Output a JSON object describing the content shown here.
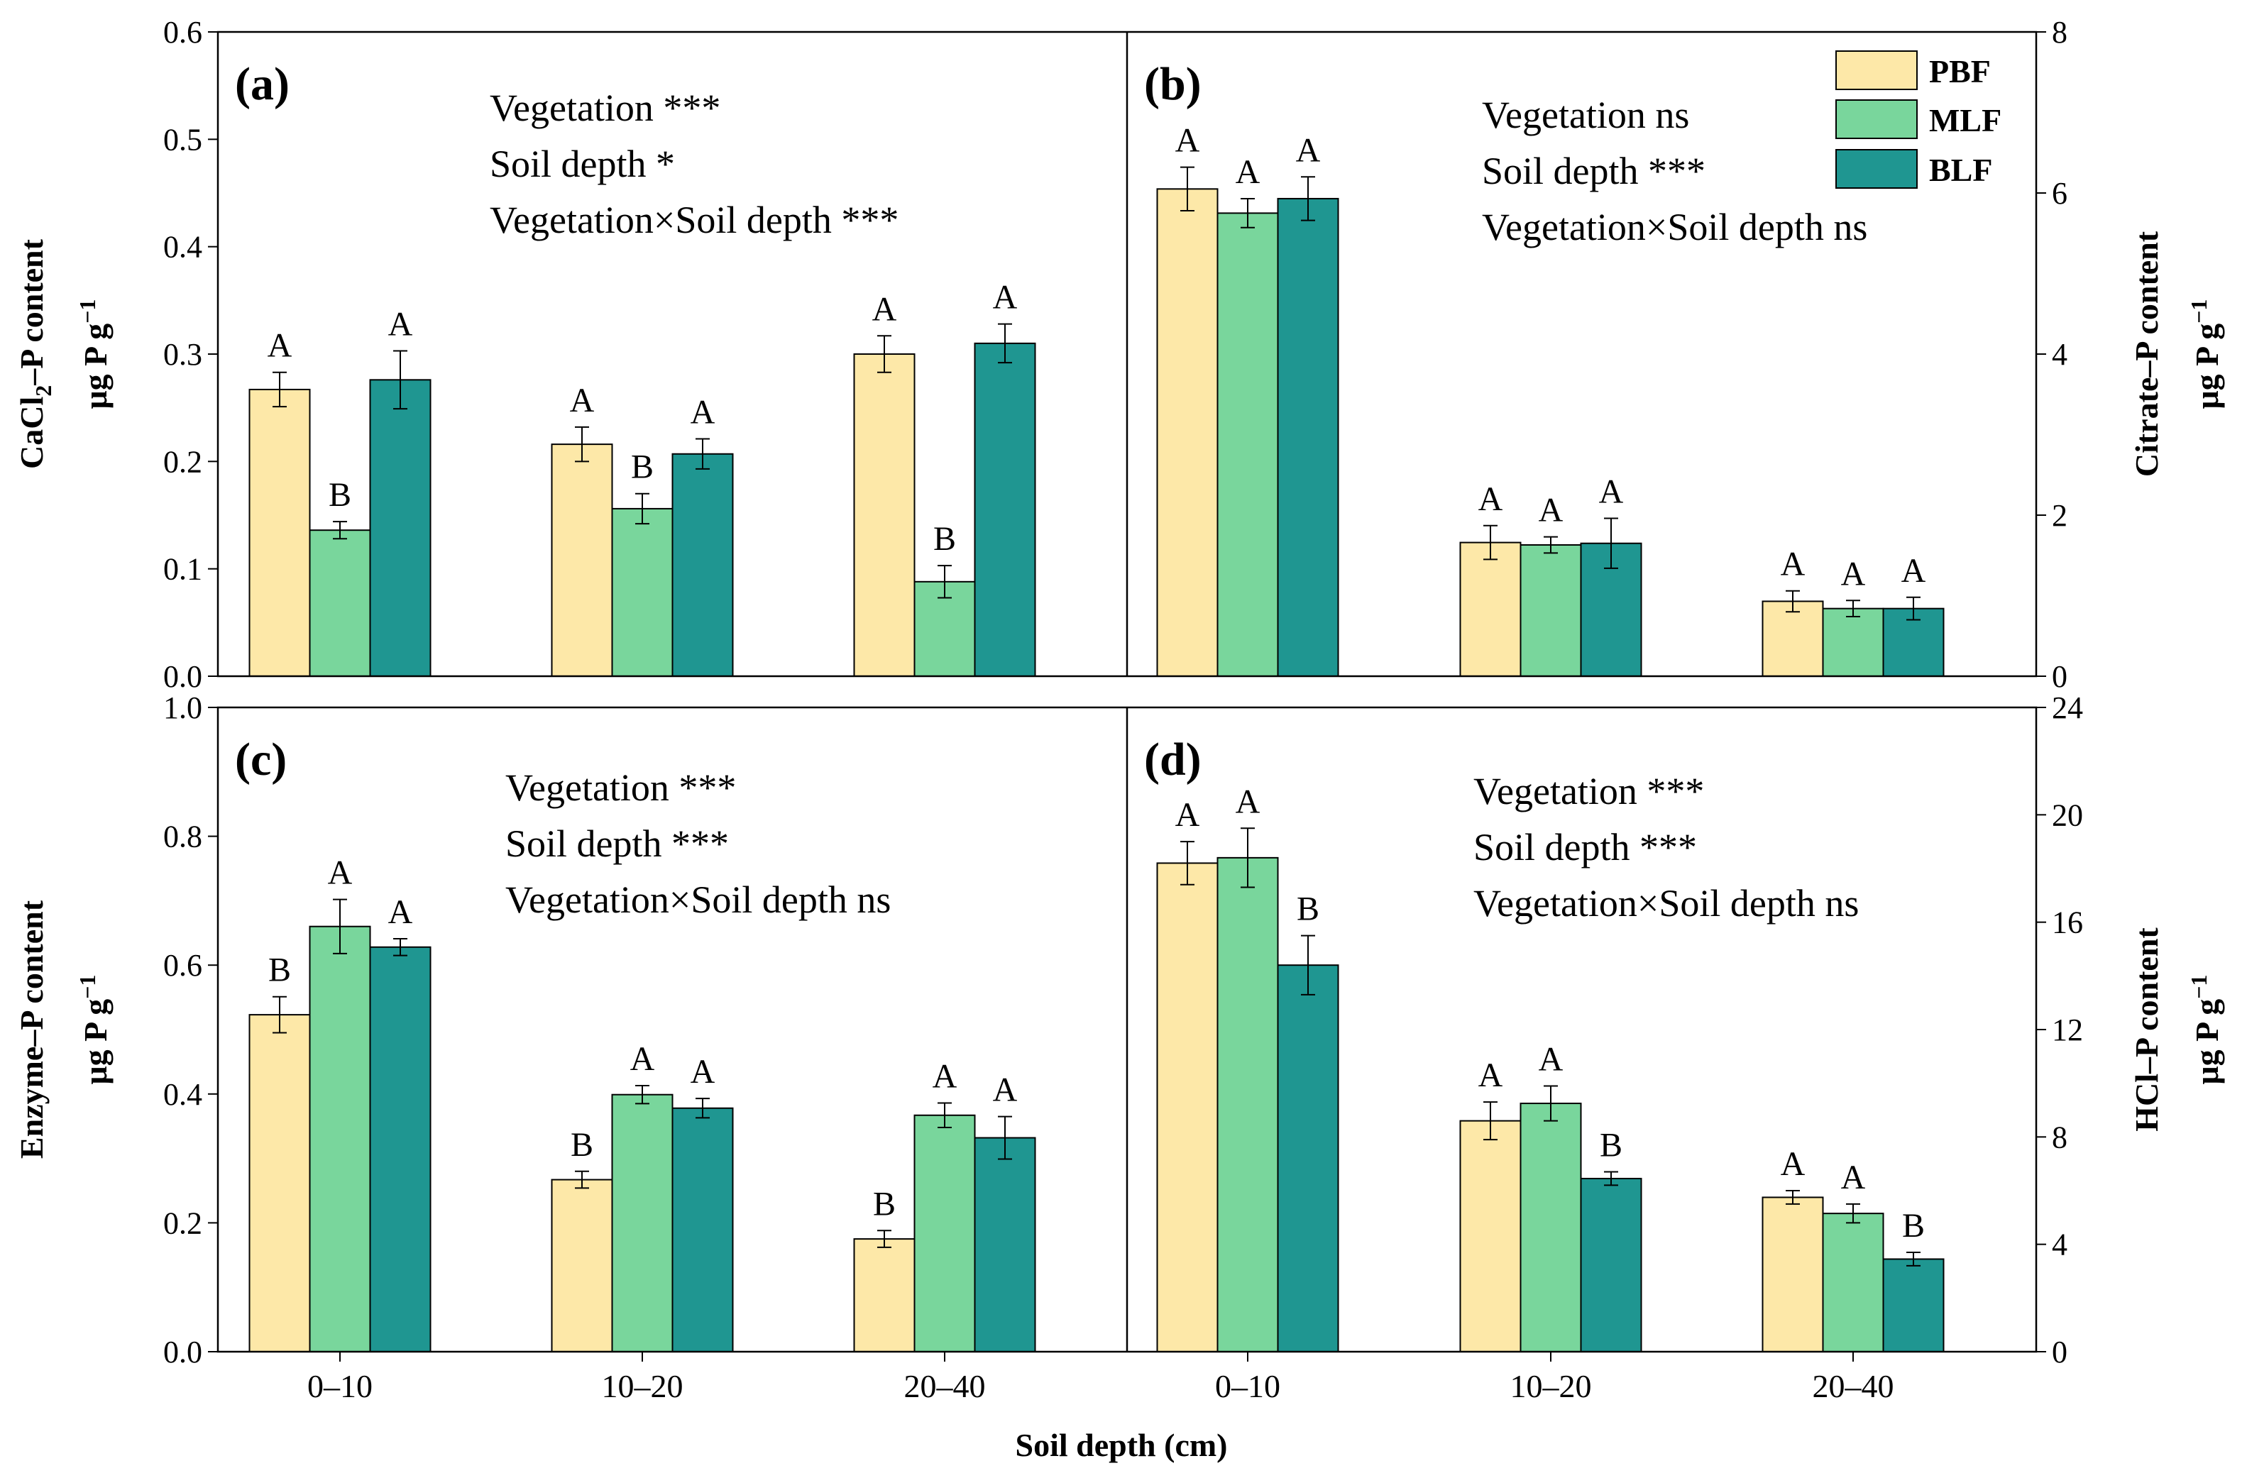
{
  "chart_data": {
    "type": "bar",
    "xlabel": "Soil depth (cm)",
    "categories": [
      "0–10",
      "10–20",
      "20–40"
    ],
    "legend": {
      "position": "top-right",
      "entries": [
        {
          "name": "PBF",
          "color": "#FDE8A8"
        },
        {
          "name": "MLF",
          "color": "#79D69C"
        },
        {
          "name": "BLF",
          "color": "#1F9691"
        }
      ]
    },
    "panels": [
      {
        "label": "(a)",
        "ylabel_line1": "CaCl",
        "ylabel_sub": "2",
        "ylabel_line1_rest": "–P content",
        "ylabel_line2": "μg P g",
        "ylabel_sup": "−1",
        "yaxis_side": "left",
        "ylim": [
          0,
          0.6
        ],
        "yticks": [
          "0.0",
          "0.1",
          "0.2",
          "0.3",
          "0.4",
          "0.5",
          "0.6"
        ],
        "annotation": [
          "Vegetation ***",
          "Soil depth *",
          "Vegetation×Soil depth ***"
        ],
        "series": [
          {
            "name": "PBF",
            "values": [
              0.267,
              0.216,
              0.3
            ],
            "errors": [
              0.016,
              0.016,
              0.017
            ],
            "letters": [
              "A",
              "A",
              "A"
            ]
          },
          {
            "name": "MLF",
            "values": [
              0.136,
              0.156,
              0.088
            ],
            "errors": [
              0.008,
              0.014,
              0.015
            ],
            "letters": [
              "B",
              "B",
              "B"
            ]
          },
          {
            "name": "BLF",
            "values": [
              0.276,
              0.207,
              0.31
            ],
            "errors": [
              0.027,
              0.014,
              0.018
            ],
            "letters": [
              "A",
              "A",
              "A"
            ]
          }
        ]
      },
      {
        "label": "(b)",
        "ylabel_line1": "Citrate–P content",
        "ylabel_line2": "μg P g",
        "ylabel_sup": "−1",
        "yaxis_side": "right",
        "ylim": [
          0,
          8
        ],
        "yticks": [
          "0",
          "2",
          "4",
          "6",
          "8"
        ],
        "annotation": [
          "Vegetation ns",
          "Soil depth ***",
          "Vegetation×Soil depth ns"
        ],
        "series": [
          {
            "name": "PBF",
            "values": [
              6.05,
              1.66,
              0.93
            ],
            "errors": [
              0.27,
              0.21,
              0.13
            ],
            "letters": [
              "A",
              "A",
              "A"
            ]
          },
          {
            "name": "MLF",
            "values": [
              5.75,
              1.63,
              0.84
            ],
            "errors": [
              0.18,
              0.1,
              0.1
            ],
            "letters": [
              "A",
              "A",
              "A"
            ]
          },
          {
            "name": "BLF",
            "values": [
              5.93,
              1.65,
              0.84
            ],
            "errors": [
              0.27,
              0.31,
              0.14
            ],
            "letters": [
              "A",
              "A",
              "A"
            ]
          }
        ]
      },
      {
        "label": "(c)",
        "ylabel_line1": "Enzyme–P content",
        "ylabel_line2": "μg P g",
        "ylabel_sup": "−1",
        "yaxis_side": "left",
        "ylim": [
          0,
          1.0
        ],
        "yticks": [
          "0.0",
          "0.2",
          "0.4",
          "0.6",
          "0.8",
          "1.0"
        ],
        "annotation": [
          "Vegetation ***",
          "Soil depth ***",
          "Vegetation×Soil depth ns"
        ],
        "series": [
          {
            "name": "PBF",
            "values": [
              0.523,
              0.267,
              0.175
            ],
            "errors": [
              0.028,
              0.013,
              0.013
            ],
            "letters": [
              "B",
              "B",
              "B"
            ]
          },
          {
            "name": "MLF",
            "values": [
              0.66,
              0.399,
              0.367
            ],
            "errors": [
              0.042,
              0.014,
              0.019
            ],
            "letters": [
              "A",
              "A",
              "A"
            ]
          },
          {
            "name": "BLF",
            "values": [
              0.628,
              0.378,
              0.332
            ],
            "errors": [
              0.013,
              0.015,
              0.033
            ],
            "letters": [
              "A",
              "A",
              "A"
            ]
          }
        ]
      },
      {
        "label": "(d)",
        "ylabel_line1": "HCl–P content",
        "ylabel_line2": "μg P g",
        "ylabel_sup": "−1",
        "yaxis_side": "right",
        "ylim": [
          0,
          24
        ],
        "yticks": [
          "0",
          "4",
          "8",
          "12",
          "16",
          "20",
          "24"
        ],
        "annotation": [
          "Vegetation ***",
          "Soil depth ***",
          "Vegetation×Soil depth ns"
        ],
        "series": [
          {
            "name": "PBF",
            "values": [
              18.2,
              8.6,
              5.75
            ],
            "errors": [
              0.8,
              0.7,
              0.25
            ],
            "letters": [
              "A",
              "A",
              "A"
            ]
          },
          {
            "name": "MLF",
            "values": [
              18.4,
              9.25,
              5.15
            ],
            "errors": [
              1.1,
              0.65,
              0.35
            ],
            "letters": [
              "A",
              "A",
              "A"
            ]
          },
          {
            "name": "BLF",
            "values": [
              14.4,
              6.45,
              3.45
            ],
            "errors": [
              1.1,
              0.25,
              0.25
            ],
            "letters": [
              "B",
              "B",
              "B"
            ]
          }
        ]
      }
    ]
  }
}
